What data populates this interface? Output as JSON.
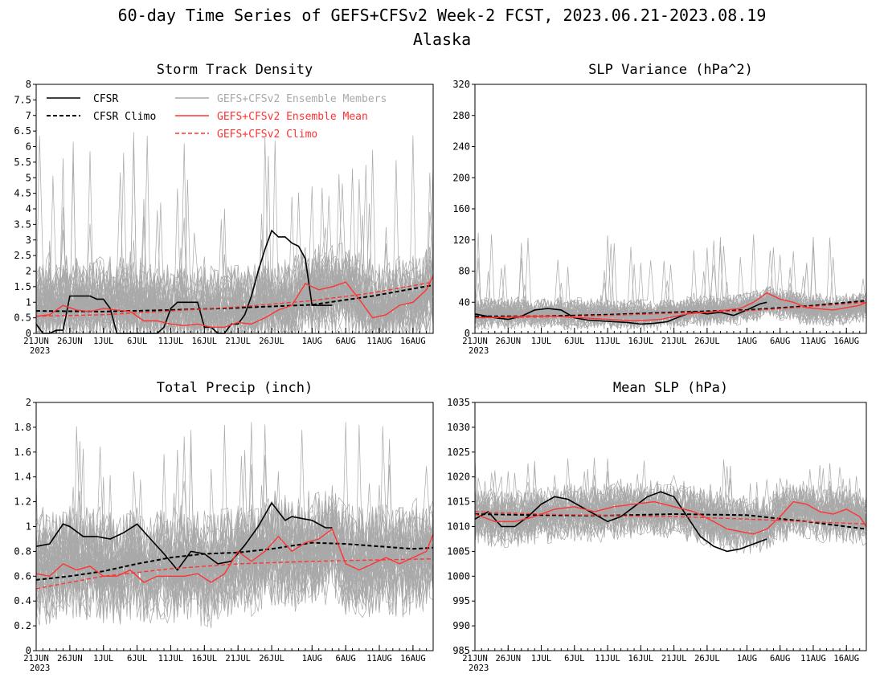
{
  "figure": {
    "title": "60-day Time Series of GEFS+CFSv2 Week-2 FCST, 2023.06.21-2023.08.19",
    "subtitle": "Alaska"
  },
  "legend": {
    "cfsr": "CFSR",
    "cfsr_climo": "CFSR Climo",
    "members": "GEFS+CFSv2 Ensemble Members",
    "mean": "GEFS+CFSv2 Ensemble Mean",
    "gefs_climo": "GEFS+CFSv2 Climo",
    "colors": {
      "cfsr": "#000000",
      "members": "#a9a9a9",
      "mean": "#ff3333"
    }
  },
  "x_axis": {
    "tick_labels": [
      "21JUN",
      "26JUN",
      "1JUL",
      "6JUL",
      "11JUL",
      "16JUL",
      "21JUL",
      "26JUL",
      "1AUG",
      "6AUG",
      "11AUG",
      "16AUG"
    ],
    "tick_days": [
      0,
      5,
      10,
      15,
      20,
      25,
      30,
      35,
      41,
      46,
      51,
      56
    ],
    "year_label": "2023",
    "range_days": [
      0,
      59
    ]
  },
  "chart_data": [
    {
      "type": "line",
      "title": "Storm Track Density",
      "ylim": [
        0,
        8
      ],
      "yticks": [
        "0",
        "0.5",
        "1",
        "1.5",
        "2",
        "2.5",
        "3",
        "3.5",
        "4",
        "4.5",
        "5",
        "5.5",
        "6",
        "6.5",
        "7",
        "7.5",
        "8"
      ],
      "spread": {
        "mid": 1.1,
        "amp": 1.3,
        "spike_max": 6.5
      },
      "series": [
        {
          "name": "CFSR",
          "style": "solid-black",
          "x": [
            0,
            1,
            2,
            3,
            4,
            5,
            6,
            7,
            8,
            9,
            10,
            11,
            12,
            13,
            14,
            15,
            16,
            17,
            18,
            19,
            20,
            21,
            22,
            23,
            24,
            25,
            26,
            27,
            28,
            29,
            30,
            31,
            32,
            33,
            34,
            35,
            36,
            37,
            38,
            39,
            40,
            41,
            42,
            43,
            44
          ],
          "y": [
            0.3,
            0.0,
            0.0,
            0.1,
            0.1,
            1.2,
            1.2,
            1.2,
            1.2,
            1.1,
            1.1,
            0.8,
            0.0,
            0.0,
            0.0,
            0.0,
            0.0,
            0.0,
            0.0,
            0.2,
            0.8,
            1.0,
            1.0,
            1.0,
            1.0,
            0.2,
            0.2,
            0.0,
            0.0,
            0.3,
            0.3,
            0.6,
            1.2,
            2.0,
            2.7,
            3.3,
            3.1,
            3.1,
            2.9,
            2.8,
            2.4,
            0.9,
            0.9,
            0.9,
            0.9
          ]
        },
        {
          "name": "CFSR Climo",
          "style": "dashed-black",
          "x": [
            0,
            10,
            20,
            30,
            41,
            50,
            59
          ],
          "y": [
            0.72,
            0.7,
            0.75,
            0.82,
            0.92,
            1.2,
            1.55
          ]
        },
        {
          "name": "GEFS+CFSv2 Ensemble Mean",
          "style": "solid-red",
          "x": [
            0,
            2,
            4,
            6,
            8,
            10,
            12,
            14,
            16,
            18,
            20,
            22,
            24,
            26,
            28,
            30,
            32,
            34,
            36,
            38,
            40,
            42,
            44,
            46,
            48,
            50,
            52,
            54,
            56,
            58,
            59
          ],
          "y": [
            0.55,
            0.6,
            0.9,
            0.75,
            0.7,
            0.8,
            0.75,
            0.7,
            0.4,
            0.4,
            0.3,
            0.25,
            0.3,
            0.2,
            0.2,
            0.35,
            0.3,
            0.5,
            0.75,
            0.9,
            1.6,
            1.4,
            1.5,
            1.65,
            1.1,
            0.5,
            0.6,
            0.9,
            1.0,
            1.4,
            1.85
          ]
        },
        {
          "name": "GEFS+CFSv2 Climo",
          "style": "dashed-red",
          "x": [
            0,
            10,
            20,
            30,
            41,
            50,
            59
          ],
          "y": [
            0.55,
            0.6,
            0.72,
            0.85,
            1.05,
            1.3,
            1.65
          ]
        }
      ]
    },
    {
      "type": "line",
      "title": "SLP Variance (hPa^2)",
      "ylim": [
        0,
        320
      ],
      "yticks": [
        "0",
        "40",
        "80",
        "120",
        "160",
        "200",
        "240",
        "280",
        "320"
      ],
      "spread": {
        "mid": 30,
        "amp": 18,
        "spike_max": 130
      },
      "series": [
        {
          "name": "CFSR",
          "style": "solid-black",
          "x": [
            0,
            3,
            5,
            7,
            9,
            11,
            13,
            15,
            17,
            19,
            21,
            23,
            25,
            27,
            29,
            31,
            33,
            35,
            37,
            39,
            41,
            43,
            44
          ],
          "y": [
            25,
            20,
            18,
            22,
            30,
            32,
            30,
            20,
            17,
            16,
            15,
            14,
            12,
            13,
            15,
            22,
            28,
            25,
            27,
            23,
            30,
            38,
            40
          ]
        },
        {
          "name": "CFSR Climo",
          "style": "dashed-black",
          "x": [
            0,
            10,
            20,
            30,
            41,
            50,
            59
          ],
          "y": [
            22,
            22,
            24,
            27,
            30,
            35,
            42
          ]
        },
        {
          "name": "GEFS+CFSv2 Ensemble Mean",
          "style": "solid-red",
          "x": [
            0,
            4,
            8,
            12,
            16,
            20,
            24,
            28,
            32,
            36,
            40,
            42,
            44,
            46,
            48,
            50,
            54,
            58,
            59
          ],
          "y": [
            20,
            21,
            22,
            22,
            20,
            18,
            16,
            18,
            25,
            28,
            32,
            40,
            52,
            44,
            40,
            33,
            30,
            36,
            40
          ]
        },
        {
          "name": "GEFS+CFSv2 Climo",
          "style": "dashed-red",
          "x": [
            0,
            10,
            20,
            30,
            41,
            50,
            59
          ],
          "y": [
            20,
            21,
            23,
            26,
            29,
            34,
            40
          ]
        }
      ]
    },
    {
      "type": "line",
      "title": "Total Precip (inch)",
      "ylim": [
        0,
        2
      ],
      "yticks": [
        "0",
        "0.2",
        "0.4",
        "0.6",
        "0.8",
        "1",
        "1.2",
        "1.4",
        "1.6",
        "1.8",
        "2"
      ],
      "spread": {
        "mid": 0.75,
        "amp": 0.4,
        "spike_max": 1.85
      },
      "series": [
        {
          "name": "CFSR",
          "style": "solid-black",
          "x": [
            0,
            2,
            4,
            5,
            7,
            9,
            11,
            13,
            15,
            17,
            19,
            21,
            23,
            25,
            27,
            29,
            31,
            33,
            35,
            37,
            38,
            39,
            41,
            43,
            44
          ],
          "y": [
            0.84,
            0.86,
            1.02,
            1.0,
            0.92,
            0.92,
            0.9,
            0.95,
            1.02,
            0.9,
            0.78,
            0.65,
            0.8,
            0.78,
            0.7,
            0.72,
            0.85,
            1.0,
            1.19,
            1.05,
            1.08,
            1.07,
            1.05,
            0.99,
            0.99
          ]
        },
        {
          "name": "CFSR Climo",
          "style": "dashed-black",
          "x": [
            0,
            5,
            10,
            15,
            20,
            25,
            30,
            35,
            41,
            46,
            51,
            56,
            59
          ],
          "y": [
            0.57,
            0.6,
            0.64,
            0.7,
            0.75,
            0.78,
            0.79,
            0.82,
            0.87,
            0.86,
            0.84,
            0.82,
            0.83
          ]
        },
        {
          "name": "GEFS+CFSv2 Ensemble Mean",
          "style": "solid-red",
          "x": [
            0,
            2,
            4,
            6,
            8,
            10,
            12,
            14,
            16,
            18,
            20,
            22,
            24,
            26,
            28,
            30,
            32,
            34,
            36,
            38,
            40,
            42,
            44,
            46,
            48,
            50,
            52,
            54,
            56,
            58,
            59
          ],
          "y": [
            0.62,
            0.6,
            0.7,
            0.65,
            0.68,
            0.6,
            0.6,
            0.65,
            0.55,
            0.6,
            0.6,
            0.6,
            0.62,
            0.55,
            0.62,
            0.8,
            0.72,
            0.8,
            0.92,
            0.8,
            0.87,
            0.9,
            0.98,
            0.7,
            0.65,
            0.7,
            0.75,
            0.7,
            0.75,
            0.8,
            0.94
          ]
        },
        {
          "name": "GEFS+CFSv2 Climo",
          "style": "dashed-red",
          "x": [
            0,
            10,
            20,
            30,
            41,
            50,
            59
          ],
          "y": [
            0.5,
            0.6,
            0.66,
            0.7,
            0.72,
            0.73,
            0.74
          ]
        }
      ]
    },
    {
      "type": "line",
      "title": "Mean SLP (hPa)",
      "ylim": [
        985,
        1035
      ],
      "yticks": [
        "985",
        "990",
        "995",
        "1000",
        "1005",
        "1010",
        "1015",
        "1020",
        "1025",
        "1030",
        "1035"
      ],
      "spread": {
        "mid": 1012,
        "amp": 5,
        "spike_max": 1024
      },
      "series": [
        {
          "name": "CFSR",
          "style": "solid-black",
          "x": [
            0,
            2,
            4,
            6,
            8,
            10,
            12,
            14,
            16,
            18,
            20,
            22,
            24,
            26,
            28,
            30,
            32,
            34,
            36,
            38,
            40,
            42,
            44
          ],
          "y": [
            1011.5,
            1013,
            1010,
            1010,
            1012,
            1014.5,
            1016,
            1015.5,
            1014,
            1012.5,
            1011,
            1012,
            1014,
            1016,
            1017,
            1016,
            1012,
            1008,
            1006,
            1005,
            1005.5,
            1006.5,
            1007.5
          ]
        },
        {
          "name": "CFSR Climo",
          "style": "dashed-black",
          "x": [
            0,
            10,
            20,
            30,
            41,
            50,
            59
          ],
          "y": [
            1012.5,
            1012.3,
            1012.2,
            1012.5,
            1012.3,
            1011,
            1009.5
          ]
        },
        {
          "name": "GEFS+CFSv2 Ensemble Mean",
          "style": "solid-red",
          "x": [
            0,
            3,
            6,
            9,
            12,
            15,
            18,
            21,
            24,
            27,
            30,
            33,
            36,
            38,
            40,
            42,
            44,
            46,
            48,
            50,
            52,
            54,
            56,
            58,
            59
          ],
          "y": [
            1012.5,
            1011,
            1011,
            1012,
            1013.5,
            1014,
            1013,
            1014,
            1014.5,
            1015,
            1014,
            1013,
            1011,
            1009.5,
            1009,
            1008.5,
            1009.5,
            1012,
            1015,
            1014.5,
            1013,
            1012.5,
            1013.5,
            1012,
            1010
          ]
        },
        {
          "name": "GEFS+CFSv2 Climo",
          "style": "dashed-red",
          "x": [
            0,
            10,
            20,
            30,
            41,
            50,
            59
          ],
          "y": [
            1013,
            1012.5,
            1012.2,
            1012,
            1011.5,
            1011,
            1010.5
          ]
        }
      ]
    }
  ]
}
